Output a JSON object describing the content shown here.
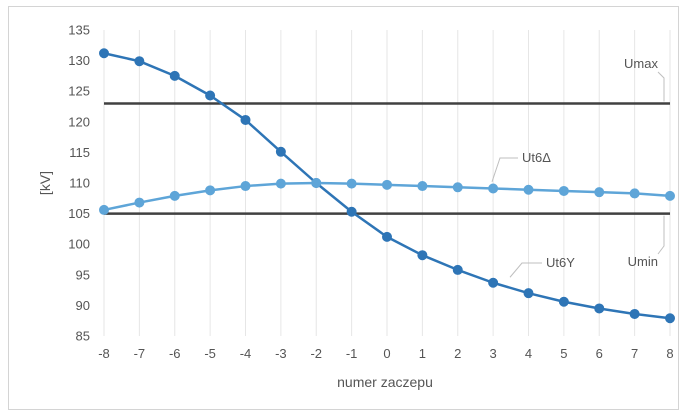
{
  "chart_data": {
    "type": "line",
    "xlabel": "numer zaczepu",
    "ylabel": "[kV]",
    "x": [
      -8,
      -7,
      -6,
      -5,
      -4,
      -3,
      -2,
      -1,
      0,
      1,
      2,
      3,
      4,
      5,
      6,
      7,
      8
    ],
    "xticks": [
      "-8",
      "-7",
      "-6",
      "-5",
      "-4",
      "-3",
      "-2",
      "-1",
      "0",
      "1",
      "2",
      "3",
      "4",
      "5",
      "6",
      "7",
      "8"
    ],
    "ylim": [
      85,
      135
    ],
    "yticks": [
      "85",
      "90",
      "95",
      "100",
      "105",
      "110",
      "115",
      "120",
      "125",
      "130",
      "135"
    ],
    "grid": "vertical",
    "series": [
      {
        "name": "Ut6Y",
        "color": "#2e75b6",
        "values": [
          131.2,
          129.9,
          127.5,
          124.3,
          120.3,
          115.1,
          110.0,
          105.3,
          101.2,
          98.2,
          95.8,
          93.7,
          92.0,
          90.6,
          89.5,
          88.6,
          87.9
        ]
      },
      {
        "name": "Ut6Δ",
        "color": "#5ea5d8",
        "values": [
          105.6,
          106.8,
          107.9,
          108.8,
          109.5,
          109.9,
          110.0,
          109.9,
          109.7,
          109.5,
          109.3,
          109.1,
          108.9,
          108.7,
          108.5,
          108.3,
          107.9
        ]
      }
    ],
    "reference_lines": [
      {
        "name": "Umax",
        "value": 123,
        "color": "#404040"
      },
      {
        "name": "Umin",
        "value": 105,
        "color": "#404040"
      }
    ]
  }
}
